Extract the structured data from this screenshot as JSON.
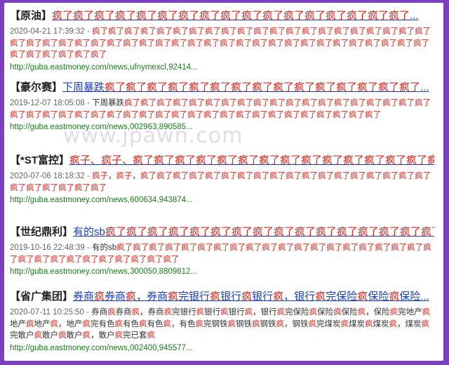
{
  "results": [
    {
      "tag": "【原油】",
      "title_parts": [
        {
          "t": "疯了疯了疯了疯了疯了疯了疯了疯了疯了疯了疯了疯了疯了疯了疯了疯了疯了",
          "h": true
        },
        {
          "t": "...",
          "h": false
        }
      ],
      "date": "2020-04-21 17:39:32 - ",
      "snippet_parts": [
        {
          "t": "疯了疯了疯了疯了疯了疯了疯了疯了疯了疯了疯了疯了疯了疯了疯了疯了疯了疯了疯了疯了疯了疯了疯了疯了疯了疯了疯了疯了疯了疯了疯了疯了疯了疯了疯了疯了疯了疯了疯了疯了疯了疯了疯了疯了疯了疯了疯了疯了疯了疯了疯了疯了疯了",
          "h": true
        }
      ],
      "url": "http://guba.eastmoney.com/news,ufnymexcl,92414..."
    },
    {
      "tag": "【豪尔赛】",
      "title_parts": [
        {
          "t": "下周暴跌",
          "h": false
        },
        {
          "t": "疯了疯了疯了疯了疯了疯了疯了疯了疯了疯了疯了疯了疯了疯了疯了",
          "h": true
        },
        {
          "t": "...",
          "h": false
        }
      ],
      "date": "2019-12-07 18:05:08 - ",
      "snippet_parts": [
        {
          "t": "下周暴跌",
          "h": false
        },
        {
          "t": "疯了疯了疯了疯了疯了疯了疯了疯了疯了疯了疯了疯了疯了疯了疯了疯了疯了疯了疯了疯了疯了疯了疯了疯了疯了疯了疯了疯了疯了疯了疯了疯了疯了疯了疯了疯了疯了疯了疯了疯了疯了疯了",
          "h": true
        }
      ],
      "url": "http://guba.eastmoney.com/news,002963,890585..."
    },
    {
      "tag": "【*ST富控】",
      "title_parts": [
        {
          "t": "疯子、疯子、疯了疯了疯了疯了疯了疯了疯了疯了疯了疯了疯了疯了疯了疯了疯了疯",
          "h": true
        },
        {
          "t": "...",
          "h": false
        }
      ],
      "date": "2020-07-06 18:18:32 - ",
      "snippet_parts": [
        {
          "t": "疯子",
          "h": true
        },
        {
          "t": "，",
          "h": false
        },
        {
          "t": "疯子",
          "h": true
        },
        {
          "t": "，",
          "h": false
        },
        {
          "t": "疯了疯了疯了疯了疯了疯了疯了疯了疯了疯了疯了疯了疯了疯了疯了疯了疯了疯了疯了疯了疯了疯了疯了疯了",
          "h": true
        }
      ],
      "url": "http://guba.eastmoney.com/news,600634,943874..."
    },
    {
      "tag": "【世纪鼎利】",
      "title_parts": [
        {
          "t": "有的sb",
          "h": false
        },
        {
          "t": "疯了疯了疯了疯了疯了疯了疯了疯了疯了疯了疯了疯了疯了疯了疯了疯了",
          "h": true
        },
        {
          "t": "...",
          "h": false
        }
      ],
      "date": "2019-10-16 22:48:39 - ",
      "snippet_parts": [
        {
          "t": "有的sb",
          "h": false
        },
        {
          "t": "疯了疯了疯了疯了疯了疯了疯了疯了疯了疯了疯了疯了疯了疯了疯了疯了疯了疯了疯了疯了疯了疯了疯了疯了疯了疯了疯了疯了疯了疯了",
          "h": true
        }
      ],
      "url": "http://guba.eastmoney.com/news,300050,8809812..."
    },
    {
      "tag": "【省广集团】",
      "title_parts": [
        {
          "t": "券商",
          "h": false
        },
        {
          "t": "疯",
          "h": true
        },
        {
          "t": "券商",
          "h": false
        },
        {
          "t": "疯",
          "h": true
        },
        {
          "t": "，券商",
          "h": false
        },
        {
          "t": "疯",
          "h": true
        },
        {
          "t": "完银行",
          "h": false
        },
        {
          "t": "疯",
          "h": true
        },
        {
          "t": "银行",
          "h": false
        },
        {
          "t": "疯",
          "h": true
        },
        {
          "t": "银行",
          "h": false
        },
        {
          "t": "疯",
          "h": true
        },
        {
          "t": "，银行",
          "h": false
        },
        {
          "t": "疯",
          "h": true
        },
        {
          "t": "完保险",
          "h": false
        },
        {
          "t": "疯",
          "h": true
        },
        {
          "t": "保险",
          "h": false
        },
        {
          "t": "疯",
          "h": true
        },
        {
          "t": "保险...",
          "h": false
        }
      ],
      "date": "2020-07-11 10:25:50 - ",
      "snippet_parts": [
        {
          "t": "券商",
          "h": false
        },
        {
          "t": "疯",
          "h": true
        },
        {
          "t": "券商",
          "h": false
        },
        {
          "t": "疯",
          "h": true
        },
        {
          "t": "，券商",
          "h": false
        },
        {
          "t": "疯",
          "h": true
        },
        {
          "t": "完银行",
          "h": false
        },
        {
          "t": "疯",
          "h": true
        },
        {
          "t": "银行",
          "h": false
        },
        {
          "t": "疯",
          "h": true
        },
        {
          "t": "银行",
          "h": false
        },
        {
          "t": "疯",
          "h": true
        },
        {
          "t": "，银行",
          "h": false
        },
        {
          "t": "疯",
          "h": true
        },
        {
          "t": "完保险",
          "h": false
        },
        {
          "t": "疯",
          "h": true
        },
        {
          "t": "保险",
          "h": false
        },
        {
          "t": "疯",
          "h": true
        },
        {
          "t": "保险",
          "h": false
        },
        {
          "t": "疯",
          "h": true
        },
        {
          "t": "，保险",
          "h": false
        },
        {
          "t": "疯",
          "h": true
        },
        {
          "t": "完地产",
          "h": false
        },
        {
          "t": "疯",
          "h": true
        },
        {
          "t": "地产",
          "h": false
        },
        {
          "t": "疯",
          "h": true
        },
        {
          "t": "地产",
          "h": false
        },
        {
          "t": "疯",
          "h": true
        },
        {
          "t": "，地产",
          "h": false
        },
        {
          "t": "疯",
          "h": true
        },
        {
          "t": "完有色",
          "h": false
        },
        {
          "t": "疯",
          "h": true
        },
        {
          "t": "有色",
          "h": false
        },
        {
          "t": "疯",
          "h": true
        },
        {
          "t": "有色",
          "h": false
        },
        {
          "t": "疯",
          "h": true
        },
        {
          "t": "，有色",
          "h": false
        },
        {
          "t": "疯",
          "h": true
        },
        {
          "t": "完钢铁",
          "h": false
        },
        {
          "t": "疯",
          "h": true
        },
        {
          "t": "钢铁",
          "h": false
        },
        {
          "t": "疯",
          "h": true
        },
        {
          "t": "钢铁",
          "h": false
        },
        {
          "t": "疯",
          "h": true
        },
        {
          "t": "，钢铁",
          "h": false
        },
        {
          "t": "疯",
          "h": true
        },
        {
          "t": "完煤炭",
          "h": false
        },
        {
          "t": "疯",
          "h": true
        },
        {
          "t": "煤炭",
          "h": false
        },
        {
          "t": "疯",
          "h": true
        },
        {
          "t": "煤炭",
          "h": false
        },
        {
          "t": "疯",
          "h": true
        },
        {
          "t": "，煤炭",
          "h": false
        },
        {
          "t": "疯",
          "h": true
        },
        {
          "t": "完散户",
          "h": false
        },
        {
          "t": "疯",
          "h": true
        },
        {
          "t": "散户",
          "h": false
        },
        {
          "t": "疯",
          "h": true
        },
        {
          "t": "散户",
          "h": false
        },
        {
          "t": "疯",
          "h": true
        },
        {
          "t": "，散户",
          "h": false
        },
        {
          "t": "疯",
          "h": true
        },
        {
          "t": "完已套",
          "h": false
        },
        {
          "t": "疯",
          "h": true
        }
      ],
      "url": "http://guba.eastmoney.com/news,002400,945577..."
    }
  ],
  "watermark": "www.jpawn.com",
  "colors": {
    "background": "#7b3fbf",
    "link": "#1a3ec0",
    "highlight": "#e0241b",
    "url": "#1a7d1a"
  }
}
